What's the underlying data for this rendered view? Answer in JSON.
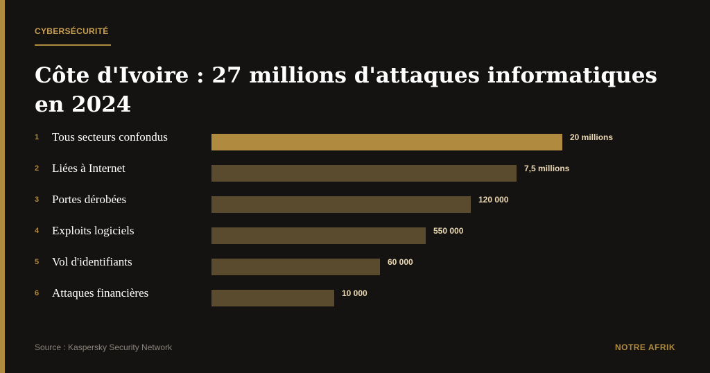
{
  "header": {
    "kicker": "CYBERSÉCURITÉ",
    "title": "Côte d'Ivoire : 27 millions d'attaques informatiques en 2024"
  },
  "chart_data": {
    "type": "bar",
    "orientation": "horizontal",
    "title": "Côte d'Ivoire : 27 millions d'attaques informatiques en 2024",
    "ranks": [
      "1",
      "2",
      "3",
      "4",
      "5",
      "6"
    ],
    "categories": [
      "Tous secteurs confondus",
      "Liées à Internet",
      "Portes dérobées",
      "Exploits logiciels",
      "Vol d'identifiants",
      "Attaques financières"
    ],
    "value_labels": [
      "20 millions",
      "7,5 millions",
      "120 000",
      "550 000",
      "60 000",
      "10 000"
    ],
    "values": [
      20000000,
      7500000,
      120000,
      550000,
      60000,
      10000
    ],
    "bar_fill_fraction": [
      1.0,
      0.87,
      0.74,
      0.61,
      0.48,
      0.35
    ],
    "highlight_index": 0,
    "colors": {
      "highlight": "#b08a3e",
      "bar": "#5a4a2e",
      "value_text": "#e9d7b2"
    }
  },
  "footer": {
    "source": "Source : Kaspersky Security Network",
    "brand": "NOTRE AFRIK"
  }
}
